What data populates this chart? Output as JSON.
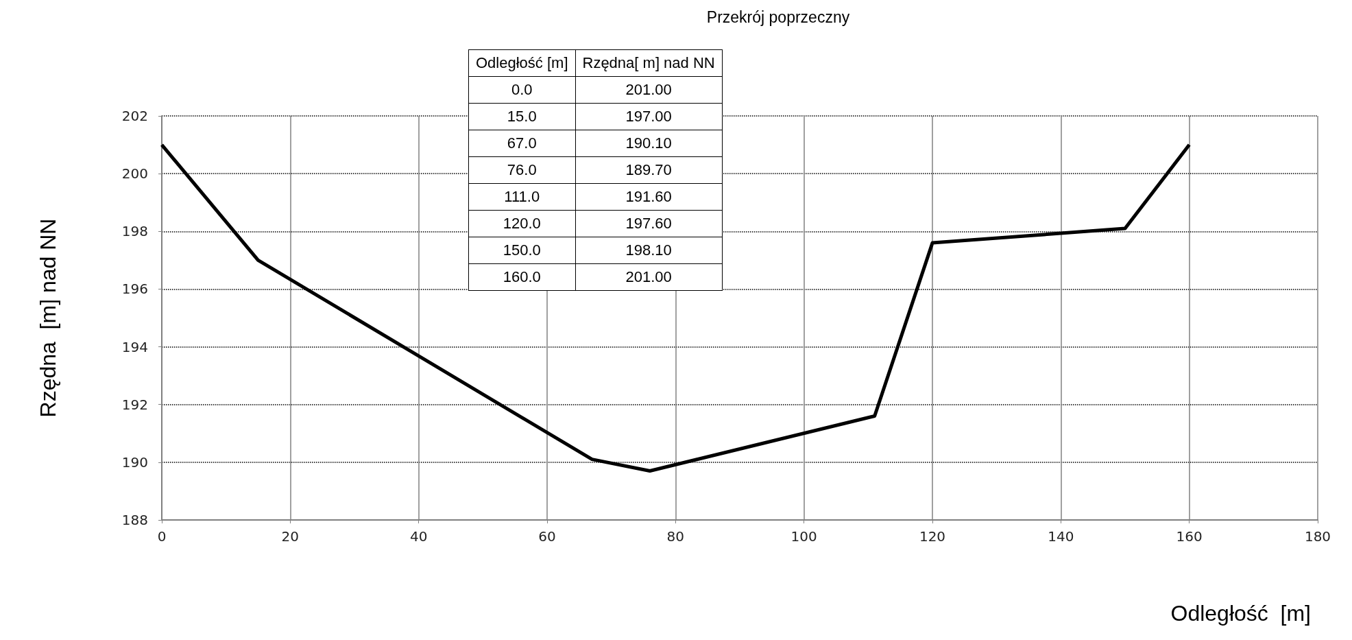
{
  "chart_data": {
    "type": "line",
    "title": "Przekrój poprzeczny",
    "xlabel": "Odległość  [m]",
    "ylabel": "Rzędna  [m] nad NN",
    "annotations": [
      "Odległość [m]",
      "Rzędna[ m] nad NN",
      "0.0",
      "201.00",
      "15.0",
      "197.00",
      "67.0",
      "190.10",
      "76.0",
      "189.70",
      "111.0",
      "191.60",
      "120.0",
      "197.60",
      "150.0",
      "198.10",
      "160.0",
      "201.00"
    ],
    "x": [
      0,
      15,
      67,
      76,
      111,
      120,
      150,
      160
    ],
    "series": [
      {
        "color": "#000000",
        "values": [
          201,
          197,
          190.1,
          189.7,
          191.6,
          197.6,
          198.1,
          201
        ]
      }
    ],
    "xlim": [
      0,
      180
    ],
    "xticks": [
      0,
      20,
      40,
      60,
      80,
      100,
      120,
      140,
      160,
      180
    ],
    "ylim": [
      188,
      202
    ],
    "yticks": [
      188,
      190,
      192,
      194,
      196,
      198,
      200,
      202
    ],
    "grid": true,
    "marker": "none",
    "line_style": "solid"
  }
}
